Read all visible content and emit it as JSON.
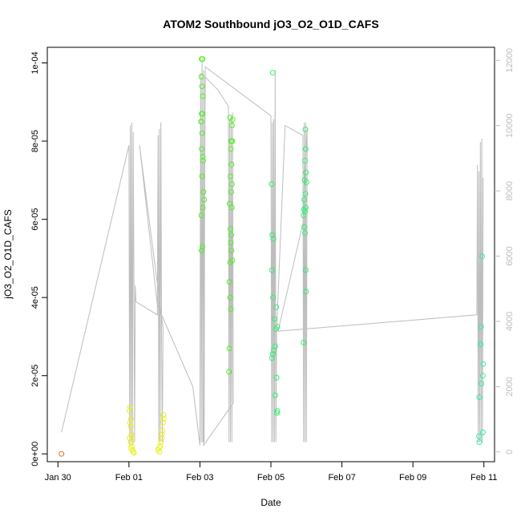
{
  "chart_data": {
    "type": "scatter",
    "title": "ATOM2 Southbound jO3_O2_O1D_CAFS",
    "xlabel": "Date",
    "ylabel": "jO3_O2_O1D_CAFS",
    "x_ticks": [
      "Jan 30",
      "Feb 01",
      "Feb 03",
      "Feb 05",
      "Feb 07",
      "Feb 09",
      "Feb 11"
    ],
    "y_ticks": [
      "0e+00",
      "2e-05",
      "4e-05",
      "6e-05",
      "8e-05",
      "1e-04"
    ],
    "y2_ticks": [
      "0",
      "2000",
      "4000",
      "6000",
      "8000",
      "10000",
      "12000"
    ],
    "xlim_days": [
      28.7,
      41.3
    ],
    "ylim": [
      -2e-06,
      0.000104
    ],
    "y2lim": [
      -300,
      12400
    ],
    "grid": false,
    "colors": {
      "early": "#e07020",
      "yellow": "#e8f020",
      "yellowgreen": "#c8f020",
      "green": "#50f020",
      "teal": "#30f070",
      "cyan": "#30f0a0",
      "altitude_line": "#bdbdbd"
    },
    "series": [
      {
        "color": "#e07020",
        "points": [
          [
            29.1,
            0.0
          ]
        ]
      },
      {
        "color": "#e8f020",
        "points": [
          [
            31.02,
            1.1e-05
          ],
          [
            31.04,
            1.2e-05
          ],
          [
            31.06,
            9e-06
          ],
          [
            31.03,
            8e-06
          ],
          [
            31.05,
            7e-06
          ],
          [
            31.07,
            5e-06
          ],
          [
            31.02,
            4e-06
          ],
          [
            31.08,
            4e-06
          ],
          [
            31.06,
            3e-06
          ],
          [
            31.09,
            2e-06
          ],
          [
            31.05,
            1.5e-06
          ],
          [
            31.1,
            1e-06
          ],
          [
            31.12,
            5e-07
          ],
          [
            31.14,
            3e-07
          ],
          [
            31.82,
            1e-06
          ],
          [
            31.85,
            1.5e-06
          ],
          [
            31.88,
            2e-06
          ],
          [
            31.9,
            3e-06
          ],
          [
            31.92,
            4e-06
          ],
          [
            31.94,
            6e-06
          ],
          [
            31.96,
            8e-06
          ],
          [
            31.98,
            9e-06
          ],
          [
            31.97,
            1e-05
          ],
          [
            31.93,
            5e-06
          ],
          [
            31.86,
            5e-07
          ]
        ]
      },
      {
        "color": "#50f020",
        "points": [
          [
            33.05,
            0.000101
          ],
          [
            33.07,
            0.000101
          ],
          [
            33.04,
            9.65e-05
          ],
          [
            33.06,
            9.4e-05
          ],
          [
            33.08,
            9.15e-05
          ],
          [
            33.05,
            8.7e-05
          ],
          [
            33.07,
            8.7e-05
          ],
          [
            33.03,
            8.5e-05
          ],
          [
            33.04,
            8.5e-05
          ],
          [
            33.06,
            8.2e-05
          ],
          [
            33.05,
            7.8e-05
          ],
          [
            33.08,
            7.6e-05
          ],
          [
            33.09,
            7.5e-05
          ],
          [
            33.06,
            7.1e-05
          ],
          [
            33.1,
            6.7e-05
          ],
          [
            33.08,
            6.3e-05
          ],
          [
            33.12,
            6.5e-05
          ],
          [
            33.04,
            6.1e-05
          ],
          [
            33.07,
            5.3e-05
          ],
          [
            33.05,
            5.2e-05
          ],
          [
            33.85,
            8.6e-05
          ],
          [
            33.9,
            8.4e-05
          ],
          [
            33.92,
            8.55e-05
          ],
          [
            33.88,
            8e-05
          ],
          [
            33.91,
            8e-05
          ],
          [
            33.87,
            7.8e-05
          ],
          [
            33.89,
            7.4e-05
          ],
          [
            33.86,
            7.1e-05
          ],
          [
            33.9,
            6.9e-05
          ],
          [
            33.88,
            6.7e-05
          ],
          [
            33.84,
            6.4e-05
          ],
          [
            33.9,
            6.3e-05
          ],
          [
            33.86,
            5.75e-05
          ],
          [
            33.88,
            5.6e-05
          ],
          [
            33.87,
            5.4e-05
          ],
          [
            33.89,
            5.2e-05
          ],
          [
            33.85,
            4.9e-05
          ],
          [
            33.91,
            4.95e-05
          ],
          [
            33.83,
            4.4e-05
          ],
          [
            33.85,
            4e-05
          ],
          [
            33.87,
            3.7e-05
          ],
          [
            33.83,
            2.7e-05
          ],
          [
            33.82,
            2.1e-05
          ]
        ]
      },
      {
        "color": "#30f070",
        "points": [
          [
            35.05,
            9.75e-05
          ],
          [
            35.02,
            6.9e-05
          ],
          [
            35.04,
            5.6e-05
          ],
          [
            35.07,
            5.5e-05
          ],
          [
            35.03,
            4.7e-05
          ],
          [
            35.06,
            4e-05
          ],
          [
            35.15,
            3.75e-05
          ],
          [
            35.1,
            3.45e-05
          ],
          [
            35.18,
            3.25e-05
          ],
          [
            35.14,
            3.2e-05
          ],
          [
            35.12,
            2.75e-05
          ],
          [
            35.08,
            2.65e-05
          ],
          [
            35.05,
            2.55e-05
          ],
          [
            35.03,
            2.45e-05
          ],
          [
            35.16,
            1.95e-05
          ],
          [
            35.12,
            1.5e-05
          ],
          [
            35.18,
            1.1e-05
          ],
          [
            35.17,
            1.05e-05
          ],
          [
            35.97,
            8.3e-05
          ],
          [
            35.98,
            7.8e-05
          ],
          [
            35.96,
            7.5e-05
          ],
          [
            35.99,
            7.2e-05
          ],
          [
            35.95,
            7e-05
          ],
          [
            36.0,
            6.95e-05
          ],
          [
            35.97,
            6.65e-05
          ],
          [
            35.94,
            6.5e-05
          ],
          [
            35.98,
            6.3e-05
          ],
          [
            35.93,
            6.25e-05
          ],
          [
            35.96,
            6.2e-05
          ],
          [
            35.92,
            6.1e-05
          ],
          [
            35.94,
            5.8e-05
          ],
          [
            35.96,
            5.65e-05
          ],
          [
            35.98,
            4.7e-05
          ],
          [
            35.99,
            4.15e-05
          ],
          [
            35.92,
            2.85e-05
          ]
        ]
      },
      {
        "color": "#30f0a0",
        "points": [
          [
            40.95,
            5.05e-05
          ],
          [
            40.92,
            3.25e-05
          ],
          [
            40.9,
            2.8e-05
          ],
          [
            40.91,
            2.8e-05
          ],
          [
            40.98,
            2.3e-05
          ],
          [
            40.97,
            2e-05
          ],
          [
            40.93,
            1.8e-05
          ],
          [
            40.87,
            1.45e-05
          ],
          [
            40.97,
            5.5e-06
          ],
          [
            40.86,
            4.5e-06
          ],
          [
            40.87,
            3e-06
          ]
        ]
      }
    ],
    "altitude_series": {
      "axis": "right",
      "color": "#bdbdbd",
      "points": [
        [
          29.1,
          600
        ],
        [
          31.0,
          9400
        ],
        [
          31.02,
          200
        ],
        [
          31.04,
          10000
        ],
        [
          31.06,
          300
        ],
        [
          31.08,
          10100
        ],
        [
          31.1,
          200
        ],
        [
          31.12,
          9800
        ],
        [
          31.14,
          5200
        ],
        [
          31.16,
          300
        ],
        [
          31.18,
          5100
        ],
        [
          31.2,
          4600
        ],
        [
          31.8,
          4200
        ],
        [
          31.82,
          9700
        ],
        [
          31.84,
          300
        ],
        [
          31.86,
          9900
        ],
        [
          31.88,
          300
        ],
        [
          31.9,
          10100
        ],
        [
          31.92,
          3400
        ],
        [
          31.94,
          300
        ],
        [
          31.96,
          3800
        ],
        [
          31.3,
          9400
        ],
        [
          31.8,
          4500
        ],
        [
          32.8,
          2000
        ],
        [
          33.0,
          200
        ],
        [
          33.02,
          11600
        ],
        [
          33.04,
          300
        ],
        [
          33.06,
          12000
        ],
        [
          33.08,
          300
        ],
        [
          33.1,
          11700
        ],
        [
          33.12,
          300
        ],
        [
          33.14,
          11500
        ],
        [
          33.5,
          11100
        ],
        [
          33.8,
          10600
        ],
        [
          33.82,
          300
        ],
        [
          33.84,
          10200
        ],
        [
          33.86,
          300
        ],
        [
          33.88,
          10300
        ],
        [
          33.9,
          300
        ],
        [
          33.92,
          10400
        ],
        [
          33.94,
          1500
        ],
        [
          33.1,
          200
        ],
        [
          33.15,
          11800
        ],
        [
          35.0,
          10300
        ],
        [
          35.02,
          300
        ],
        [
          35.04,
          10100
        ],
        [
          35.06,
          300
        ],
        [
          35.08,
          10200
        ],
        [
          35.1,
          300
        ],
        [
          35.12,
          11700
        ],
        [
          35.14,
          300
        ],
        [
          35.16,
          3700
        ],
        [
          35.4,
          10000
        ],
        [
          35.9,
          9700
        ],
        [
          35.92,
          300
        ],
        [
          35.94,
          10100
        ],
        [
          35.96,
          300
        ],
        [
          35.98,
          10100
        ],
        [
          36.0,
          300
        ],
        [
          36.02,
          9900
        ],
        [
          35.9,
          7000
        ],
        [
          35.2,
          3700
        ],
        [
          40.8,
          4200
        ],
        [
          40.82,
          8800
        ],
        [
          40.84,
          300
        ],
        [
          40.86,
          8600
        ],
        [
          40.88,
          300
        ],
        [
          40.9,
          9500
        ],
        [
          40.92,
          300
        ],
        [
          40.94,
          9600
        ],
        [
          40.96,
          300
        ],
        [
          40.98,
          8400
        ]
      ]
    }
  }
}
